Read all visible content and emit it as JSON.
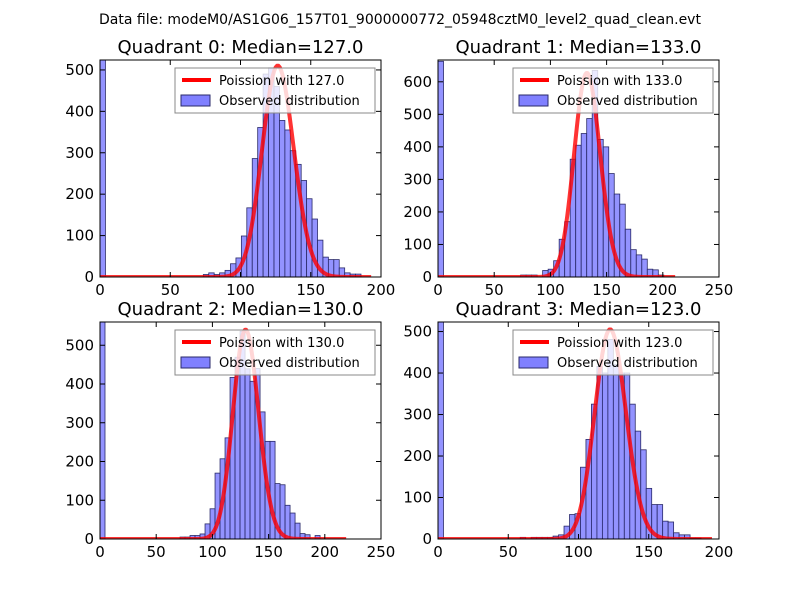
{
  "suptitle": "Data file: modeM0/AS1G06_157T01_9000000772_05948cztM0_level2_quad_clean.evt",
  "colors": {
    "bar_fill": "#8080ff",
    "bar_edge": "#2a2a6a",
    "curve": "#ff0000"
  },
  "chart_data": [
    {
      "type": "bar",
      "title": "Quadrant 0: Median=127.0",
      "legend": {
        "placement": "top-right",
        "entries": [
          "Poission with 127.0",
          "Observed distribution"
        ]
      },
      "xlim": [
        0,
        200
      ],
      "ylim": [
        0,
        524
      ],
      "xticks": [
        0,
        50,
        100,
        150,
        200
      ],
      "yticks": [
        0,
        100,
        200,
        300,
        400,
        500
      ],
      "bin_width": 3.87,
      "counts": [
        530,
        0,
        0,
        0,
        0,
        0,
        0,
        0,
        0,
        0,
        0,
        0,
        0,
        0,
        0,
        0,
        0,
        0,
        0,
        6,
        10,
        6,
        10,
        16,
        32,
        46,
        99,
        167,
        286,
        361,
        490,
        505,
        460,
        378,
        355,
        305,
        272,
        233,
        189,
        140,
        89,
        48,
        42,
        42,
        22,
        10,
        7,
        7,
        0,
        0
      ],
      "poisson": {
        "lambda": 127,
        "peak": 510,
        "x_max": 193
      }
    },
    {
      "type": "bar",
      "title": "Quadrant 1: Median=133.0",
      "legend": {
        "placement": "top-right",
        "entries": [
          "Poission with 133.0",
          "Observed distribution"
        ]
      },
      "xlim": [
        0,
        250
      ],
      "ylim": [
        0,
        667
      ],
      "xticks": [
        0,
        50,
        100,
        150,
        200,
        250
      ],
      "yticks": [
        0,
        100,
        200,
        300,
        400,
        500,
        600
      ],
      "bin_width": 4.9,
      "counts": [
        663,
        0,
        0,
        0,
        0,
        0,
        0,
        0,
        0,
        0,
        0,
        0,
        0,
        0,
        0,
        6,
        6,
        6,
        0,
        20,
        24,
        50,
        116,
        170,
        362,
        405,
        441,
        487,
        635,
        423,
        400,
        318,
        255,
        224,
        147,
        84,
        68,
        55,
        24,
        22,
        6,
        0,
        0
      ],
      "poisson": {
        "lambda": 133,
        "peak": 627,
        "x_max": 211
      }
    },
    {
      "type": "bar",
      "title": "Quadrant 2: Median=130.0",
      "legend": {
        "placement": "top-right",
        "entries": [
          "Poission with 130.0",
          "Observed distribution"
        ]
      },
      "xlim": [
        0,
        250
      ],
      "ylim": [
        0,
        560
      ],
      "xticks": [
        0,
        50,
        100,
        150,
        200,
        250
      ],
      "yticks": [
        0,
        100,
        200,
        300,
        400,
        500
      ],
      "bin_width": 4.45,
      "counts": [
        560,
        0,
        0,
        0,
        0,
        0,
        0,
        0,
        0,
        0,
        0,
        0,
        0,
        0,
        0,
        0,
        5,
        5,
        9,
        9,
        13,
        39,
        78,
        170,
        207,
        261,
        417,
        469,
        536,
        439,
        407,
        440,
        328,
        252,
        252,
        143,
        140,
        87,
        67,
        41,
        14,
        11,
        0,
        9,
        0,
        0,
        0,
        0,
        0,
        0
      ],
      "poisson": {
        "lambda": 130,
        "peak": 540,
        "x_max": 219
      }
    },
    {
      "type": "bar",
      "title": "Quadrant 3: Median=123.0",
      "legend": {
        "placement": "top-right",
        "entries": [
          "Poission with 123.0",
          "Observed distribution"
        ]
      },
      "xlim": [
        0,
        200
      ],
      "ylim": [
        0,
        523
      ],
      "xticks": [
        0,
        50,
        100,
        150,
        200
      ],
      "yticks": [
        0,
        100,
        200,
        300,
        400,
        500
      ],
      "bin_width": 3.9,
      "counts": [
        523,
        0,
        0,
        0,
        0,
        0,
        0,
        0,
        0,
        0,
        0,
        0,
        0,
        0,
        0,
        4,
        0,
        4,
        4,
        4,
        4,
        7,
        10,
        31,
        59,
        61,
        173,
        240,
        325,
        416,
        400,
        481,
        420,
        400,
        400,
        325,
        260,
        215,
        122,
        83,
        83,
        43,
        41,
        15,
        10,
        10,
        2,
        2,
        0,
        0
      ],
      "poisson": {
        "lambda": 123,
        "peak": 505,
        "x_max": 195
      }
    }
  ]
}
